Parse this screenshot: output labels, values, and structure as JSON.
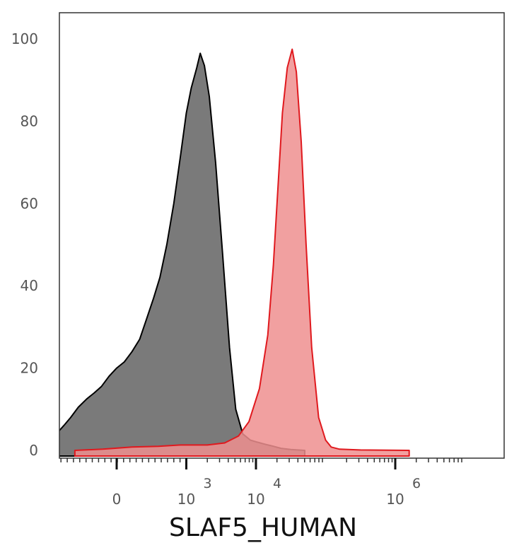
{
  "chart_data": {
    "type": "area",
    "title": "",
    "xlabel": "SLAF5_HUMAN",
    "ylabel": "",
    "ylim": [
      0,
      100
    ],
    "x_scale": "biexponential",
    "grid": false,
    "yticks": [
      "0",
      "20",
      "40",
      "60",
      "80",
      "100"
    ],
    "xticks": [
      {
        "base": "0",
        "exp": ""
      },
      {
        "base": "10",
        "exp": "3"
      },
      {
        "base": "10",
        "exp": "4"
      },
      {
        "base": "10",
        "exp": "6"
      }
    ],
    "series": [
      {
        "color": "#7a7a7a",
        "stroke": "#000000",
        "points": [
          [
            -1.0,
            3.5
          ],
          [
            -0.97,
            2.0
          ],
          [
            -0.93,
            1.0
          ],
          [
            -0.89,
            2.5
          ],
          [
            -0.84,
            4.5
          ],
          [
            -0.76,
            6.0
          ],
          [
            -0.66,
            8.0
          ],
          [
            -0.55,
            10.5
          ],
          [
            -0.43,
            12.5
          ],
          [
            -0.32,
            14.0
          ],
          [
            -0.22,
            15.5
          ],
          [
            -0.11,
            18.0
          ],
          [
            0.0,
            20.0
          ],
          [
            0.11,
            21.5
          ],
          [
            0.22,
            24.0
          ],
          [
            0.33,
            27.0
          ],
          [
            0.43,
            32.0
          ],
          [
            0.53,
            37.0
          ],
          [
            0.62,
            42.0
          ],
          [
            0.72,
            50.0
          ],
          [
            0.82,
            60.0
          ],
          [
            0.92,
            72.0
          ],
          [
            1.0,
            82.0
          ],
          [
            1.07,
            88.0
          ],
          [
            1.15,
            93.0
          ],
          [
            1.2,
            96.5
          ],
          [
            1.26,
            93.5
          ],
          [
            1.33,
            86.0
          ],
          [
            1.42,
            70.0
          ],
          [
            1.52,
            48.0
          ],
          [
            1.62,
            25.0
          ],
          [
            1.71,
            10.0
          ],
          [
            1.81,
            4.0
          ],
          [
            1.92,
            2.5
          ],
          [
            2.02,
            2.0
          ],
          [
            2.13,
            1.5
          ],
          [
            2.25,
            1.0
          ],
          [
            2.36,
            0.5
          ],
          [
            2.5,
            0.2
          ],
          [
            2.7,
            0.0
          ]
        ]
      },
      {
        "color": "#ee8f8f",
        "stroke": "#e0191e",
        "points": [
          [
            -0.6,
            0.0
          ],
          [
            -0.2,
            0.3
          ],
          [
            0.22,
            0.8
          ],
          [
            0.6,
            1.0
          ],
          [
            0.92,
            1.3
          ],
          [
            1.3,
            1.3
          ],
          [
            1.55,
            1.8
          ],
          [
            1.75,
            3.5
          ],
          [
            1.9,
            7.0
          ],
          [
            2.05,
            15.0
          ],
          [
            2.17,
            28.0
          ],
          [
            2.25,
            45.0
          ],
          [
            2.32,
            65.0
          ],
          [
            2.38,
            82.0
          ],
          [
            2.45,
            93.0
          ],
          [
            2.52,
            97.5
          ],
          [
            2.58,
            92.0
          ],
          [
            2.65,
            75.0
          ],
          [
            2.72,
            50.0
          ],
          [
            2.8,
            25.0
          ],
          [
            2.9,
            8.0
          ],
          [
            3.0,
            2.5
          ],
          [
            3.08,
            0.8
          ],
          [
            3.2,
            0.3
          ],
          [
            3.5,
            0.1
          ],
          [
            4.2,
            0.0
          ]
        ]
      }
    ]
  }
}
